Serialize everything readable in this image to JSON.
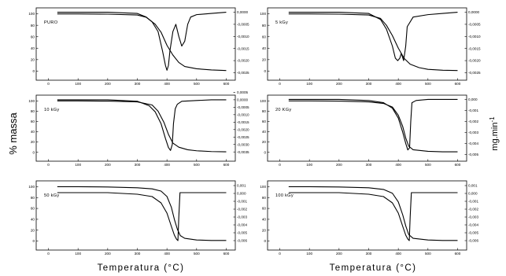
{
  "figure": {
    "ylabel_left": "% massa",
    "ylabel_right_base": "mg.min",
    "ylabel_right_exp": "-1",
    "xlabel_left": "Temperatura (°C)",
    "xlabel_right": "Temperatura (°C)",
    "colors": {
      "line": "#000000",
      "background": "#ffffff"
    }
  },
  "chart_data": [
    {
      "type": "line",
      "label": "PURO",
      "xlim": [
        -20,
        620
      ],
      "ylim_left": [
        -5,
        105
      ],
      "xticks": [
        0,
        100,
        200,
        300,
        400,
        500,
        600
      ],
      "xticklabels": [
        "0",
        "100",
        "200",
        "300",
        "400",
        "500",
        "600"
      ],
      "yticks_left": [
        0,
        20,
        40,
        60,
        80,
        100
      ],
      "yticklabels_left": [
        "0",
        "20",
        "40",
        "60",
        "80",
        "100"
      ],
      "ylim_right": [
        -0.00255,
        5e-05
      ],
      "yticks_right": [
        0.0,
        -0.0005,
        -0.001,
        -0.0015,
        -0.002,
        -0.0025
      ],
      "yticklabels_right": [
        "0,0000",
        "-0,0005",
        "-0,0010",
        "-0,0015",
        "-0,0020",
        "-0,0025"
      ],
      "series": [
        {
          "axis": "left",
          "x": [
            30,
            100,
            200,
            300,
            330,
            360,
            380,
            400,
            420,
            440,
            460,
            500,
            550,
            600
          ],
          "y": [
            100,
            100,
            99.5,
            98,
            94,
            82,
            68,
            45,
            28,
            15,
            8,
            4,
            2,
            1
          ]
        },
        {
          "axis": "right",
          "x": [
            30,
            100,
            200,
            300,
            330,
            350,
            370,
            385,
            395,
            400,
            405,
            410,
            420,
            430,
            440,
            450,
            460,
            470,
            480,
            500,
            550,
            600
          ],
          "y": [
            0,
            0,
            0,
            -5e-05,
            -0.0002,
            -0.0004,
            -0.0008,
            -0.0016,
            -0.0022,
            -0.0024,
            -0.0022,
            -0.0016,
            -0.0008,
            -0.0005,
            -0.001,
            -0.0014,
            -0.0012,
            -0.0005,
            -0.0002,
            -0.0001,
            -5e-05,
            0
          ]
        }
      ]
    },
    {
      "type": "line",
      "label": "5 kGy",
      "xlim": [
        -20,
        620
      ],
      "ylim_left": [
        -5,
        105
      ],
      "xticks": [
        0,
        100,
        200,
        300,
        400,
        500,
        600
      ],
      "xticklabels": [
        "0",
        "100",
        "200",
        "300",
        "400",
        "500",
        "600"
      ],
      "yticks_left": [
        0,
        20,
        40,
        60,
        80,
        100
      ],
      "yticklabels_left": [
        "0",
        "20",
        "40",
        "60",
        "80",
        "100"
      ],
      "ylim_right": [
        -0.00255,
        5e-05
      ],
      "yticks_right": [
        0.0,
        -0.0005,
        -0.001,
        -0.0015,
        -0.002,
        -0.0025
      ],
      "yticklabels_right": [
        "0,0000",
        "-0,0005",
        "-0,0010",
        "-0,0015",
        "-0,0020",
        "-0,0025"
      ],
      "series": [
        {
          "axis": "left",
          "x": [
            30,
            100,
            200,
            300,
            340,
            360,
            380,
            400,
            420,
            440,
            470,
            500,
            550,
            600
          ],
          "y": [
            100,
            100,
            99.5,
            98,
            92,
            80,
            62,
            40,
            22,
            12,
            6,
            3,
            1.5,
            1
          ]
        },
        {
          "axis": "right",
          "x": [
            30,
            100,
            200,
            300,
            340,
            360,
            380,
            390,
            398,
            405,
            410,
            418,
            425,
            430,
            450,
            500,
            550,
            600
          ],
          "y": [
            0,
            0,
            0,
            -5e-05,
            -0.0003,
            -0.0007,
            -0.0014,
            -0.0019,
            -0.002,
            -0.0019,
            -0.0017,
            -0.002,
            -0.0014,
            -0.0006,
            -0.0002,
            -0.0001,
            -5e-05,
            0
          ]
        }
      ]
    },
    {
      "type": "line",
      "label": "10 kGy",
      "xlim": [
        -20,
        620
      ],
      "ylim_left": [
        -5,
        105
      ],
      "xticks": [
        0,
        100,
        200,
        300,
        400,
        500,
        600
      ],
      "xticklabels": [
        "0",
        "100",
        "200",
        "300",
        "400",
        "500",
        "600"
      ],
      "yticks_left": [
        0,
        20,
        40,
        60,
        80,
        100
      ],
      "yticklabels_left": [
        "0",
        "20",
        "40",
        "60",
        "80",
        "100"
      ],
      "ylim_right": [
        -0.0037,
        0.0001
      ],
      "yticks_right": [
        0.0005,
        0.0,
        -0.0005,
        -0.001,
        -0.0015,
        -0.002,
        -0.0025,
        -0.003,
        -0.0035
      ],
      "yticklabels_right": [
        "0,0005",
        "0,0000",
        "-0,0005",
        "-0,0010",
        "-0,0015",
        "-0,0020",
        "-0,0025",
        "-0,0030",
        "-0,0035"
      ],
      "series": [
        {
          "axis": "left",
          "x": [
            30,
            100,
            200,
            300,
            350,
            370,
            390,
            405,
            420,
            440,
            470,
            500,
            550,
            600
          ],
          "y": [
            100,
            100,
            99.5,
            98,
            92,
            80,
            58,
            35,
            18,
            10,
            5,
            3,
            1.5,
            1
          ]
        },
        {
          "axis": "right",
          "x": [
            30,
            100,
            200,
            300,
            340,
            360,
            380,
            395,
            405,
            412,
            418,
            422,
            428,
            435,
            450,
            500,
            550,
            600
          ],
          "y": [
            0,
            0,
            0,
            -0.0001,
            -0.0004,
            -0.0008,
            -0.0016,
            -0.0026,
            -0.0032,
            -0.0034,
            -0.003,
            -0.0016,
            -0.0006,
            -0.0003,
            -0.0001,
            -5e-05,
            0,
            0
          ]
        }
      ]
    },
    {
      "type": "line",
      "label": "20 KGy",
      "xlim": [
        -20,
        620
      ],
      "ylim_left": [
        -5,
        105
      ],
      "xticks": [
        0,
        100,
        200,
        300,
        400,
        500,
        600
      ],
      "xticklabels": [
        "0",
        "100",
        "200",
        "300",
        "400",
        "500",
        "600"
      ],
      "yticks_left": [
        0,
        20,
        40,
        60,
        80,
        100
      ],
      "yticklabels_left": [
        "0",
        "20",
        "40",
        "60",
        "80",
        "100"
      ],
      "ylim_right": [
        -0.00505,
        0.0001
      ],
      "yticks_right": [
        0.0,
        -0.001,
        -0.002,
        -0.003,
        -0.004,
        -0.005
      ],
      "yticklabels_right": [
        "0,000",
        "-0,001",
        "-0,002",
        "-0,003",
        "-0,004",
        "-0,005"
      ],
      "series": [
        {
          "axis": "left",
          "x": [
            30,
            100,
            200,
            300,
            350,
            380,
            400,
            415,
            425,
            435,
            450,
            500,
            550,
            600
          ],
          "y": [
            100,
            100,
            99.5,
            98,
            95,
            88,
            72,
            50,
            28,
            12,
            5,
            2,
            1,
            1
          ]
        },
        {
          "axis": "right",
          "x": [
            30,
            100,
            200,
            300,
            350,
            380,
            400,
            415,
            425,
            432,
            438,
            442,
            446,
            460,
            500,
            550,
            600
          ],
          "y": [
            0,
            0,
            0,
            -0.0001,
            -0.0003,
            -0.0008,
            -0.0017,
            -0.003,
            -0.004,
            -0.0046,
            -0.0044,
            -0.002,
            -0.0003,
            -0.0001,
            0,
            0,
            0
          ]
        }
      ]
    },
    {
      "type": "line",
      "label": "50 kGy",
      "xlim": [
        -20,
        620
      ],
      "ylim_left": [
        -5,
        105
      ],
      "xticks": [
        0,
        100,
        200,
        300,
        400,
        500,
        600
      ],
      "xticklabels": [
        "0",
        "100",
        "200",
        "300",
        "400",
        "500",
        "600"
      ],
      "yticks_left": [
        0,
        20,
        40,
        60,
        80,
        100
      ],
      "yticklabels_left": [
        "0",
        "20",
        "40",
        "60",
        "80",
        "100"
      ],
      "ylim_right": [
        -0.0064,
        0.0012
      ],
      "yticks_right": [
        0.001,
        0.0,
        -0.001,
        -0.002,
        -0.003,
        -0.004,
        -0.005,
        -0.006
      ],
      "yticklabels_right": [
        "0,001",
        "0,000",
        "-0,001",
        "-0,002",
        "-0,003",
        "-0,004",
        "-0,005",
        "-0,006"
      ],
      "series": [
        {
          "axis": "left",
          "x": [
            30,
            100,
            200,
            300,
            350,
            380,
            400,
            415,
            425,
            435,
            445,
            460,
            500,
            550,
            600
          ],
          "y": [
            100,
            100,
            99.5,
            98,
            96,
            92,
            82,
            62,
            40,
            22,
            10,
            5,
            2,
            1,
            1
          ]
        },
        {
          "axis": "right",
          "x": [
            30,
            100,
            200,
            300,
            350,
            380,
            400,
            415,
            425,
            432,
            437,
            440,
            444,
            460,
            500,
            550,
            600
          ],
          "y": [
            0.0001,
            0.0001,
            0.0001,
            -0.0001,
            -0.0004,
            -0.0012,
            -0.0025,
            -0.0042,
            -0.0053,
            -0.0058,
            -0.006,
            -0.003,
            0.0001,
            0.0001,
            0.0001,
            0.0001,
            0.0001
          ]
        }
      ]
    },
    {
      "type": "line",
      "label": "100 kGy",
      "xlim": [
        -20,
        620
      ],
      "ylim_left": [
        -5,
        105
      ],
      "xticks": [
        0,
        100,
        200,
        300,
        400,
        500,
        600
      ],
      "xticklabels": [
        "0",
        "100",
        "200",
        "300",
        "400",
        "500",
        "600"
      ],
      "yticks_left": [
        0,
        20,
        40,
        60,
        80,
        100
      ],
      "yticklabels_left": [
        "0",
        "20",
        "40",
        "60",
        "80",
        "100"
      ],
      "ylim_right": [
        -0.0064,
        0.0012
      ],
      "yticks_right": [
        0.001,
        0.0,
        -0.001,
        -0.002,
        -0.003,
        -0.004,
        -0.005,
        -0.006
      ],
      "yticklabels_right": [
        "0,001",
        "0,000",
        "-0,001",
        "-0,002",
        "-0,003",
        "-0,004",
        "-0,005",
        "-0,006"
      ],
      "series": [
        {
          "axis": "left",
          "x": [
            30,
            100,
            200,
            300,
            350,
            380,
            400,
            415,
            425,
            435,
            450,
            500,
            550,
            600
          ],
          "y": [
            100,
            100,
            99.5,
            98,
            95,
            88,
            72,
            48,
            28,
            12,
            5,
            2,
            1,
            1
          ]
        },
        {
          "axis": "right",
          "x": [
            30,
            100,
            200,
            300,
            350,
            380,
            400,
            415,
            425,
            432,
            437,
            440,
            444,
            460,
            500,
            550,
            600
          ],
          "y": [
            0.0001,
            0.0001,
            0.0001,
            -0.0001,
            -0.0004,
            -0.0012,
            -0.0025,
            -0.0042,
            -0.0053,
            -0.0058,
            -0.006,
            -0.003,
            0.0001,
            0.0001,
            0.0001,
            0.0001,
            0.0001
          ]
        }
      ]
    }
  ]
}
